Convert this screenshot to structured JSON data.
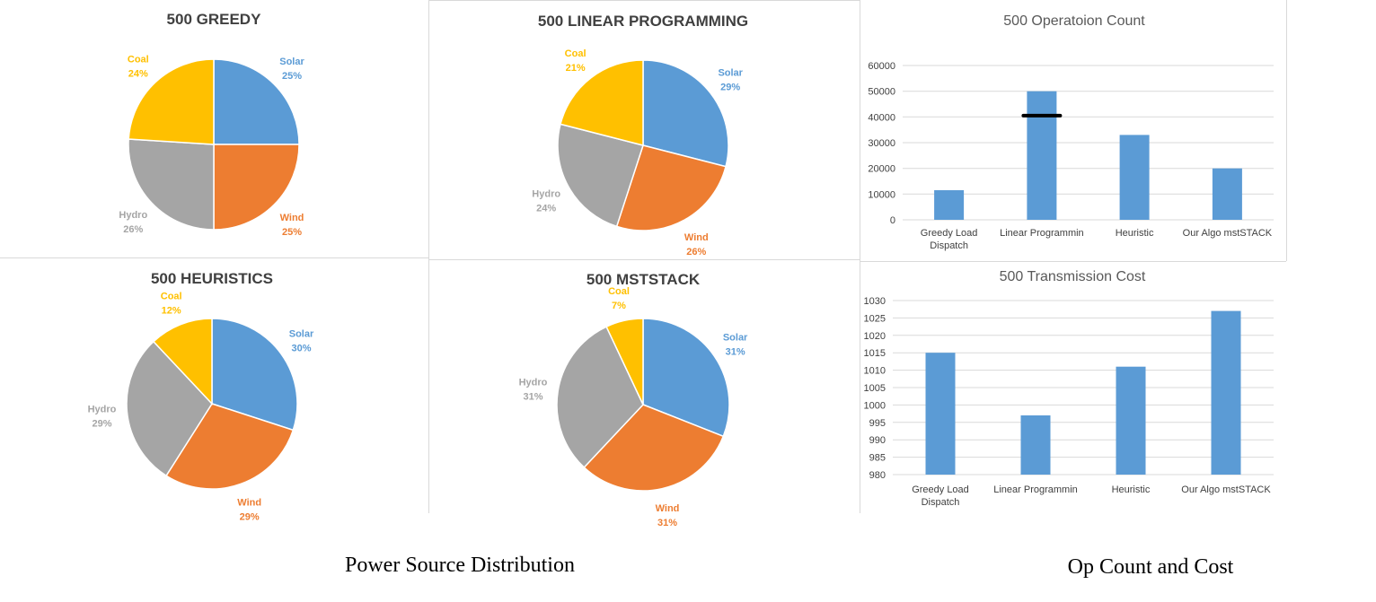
{
  "colors": {
    "Solar": "#5b9bd5",
    "Wind": "#ed7d31",
    "Hydro": "#a5a5a5",
    "Coal": "#ffc000",
    "bar": "#5b9bd5"
  },
  "captions": {
    "left": "Power Source Distribution",
    "right": "Op Count and Cost"
  },
  "chart_data": [
    {
      "type": "pie",
      "title": "500 GREEDY",
      "slices": [
        {
          "label": "Solar",
          "value": 25,
          "pct": "25%"
        },
        {
          "label": "Wind",
          "value": 25,
          "pct": "25%"
        },
        {
          "label": "Hydro",
          "value": 26,
          "pct": "26%"
        },
        {
          "label": "Coal",
          "value": 24,
          "pct": "24%"
        }
      ]
    },
    {
      "type": "pie",
      "title": "500 LINEAR PROGRAMMING",
      "slices": [
        {
          "label": "Solar",
          "value": 29,
          "pct": "29%"
        },
        {
          "label": "Wind",
          "value": 26,
          "pct": "26%"
        },
        {
          "label": "Hydro",
          "value": 24,
          "pct": "24%"
        },
        {
          "label": "Coal",
          "value": 21,
          "pct": "21%"
        }
      ]
    },
    {
      "type": "pie",
      "title": "500 HEURISTICS",
      "slices": [
        {
          "label": "Solar",
          "value": 30,
          "pct": "30%"
        },
        {
          "label": "Wind",
          "value": 29,
          "pct": "29%"
        },
        {
          "label": "Hydro",
          "value": 29,
          "pct": "29%"
        },
        {
          "label": "Coal",
          "value": 12,
          "pct": "12%"
        }
      ]
    },
    {
      "type": "pie",
      "title": "500 MSTSTACK",
      "slices": [
        {
          "label": "Solar",
          "value": 31,
          "pct": "31%"
        },
        {
          "label": "Wind",
          "value": 31,
          "pct": "31%"
        },
        {
          "label": "Hydro",
          "value": 31,
          "pct": "31%"
        },
        {
          "label": "Coal",
          "value": 7,
          "pct": "7%"
        }
      ]
    },
    {
      "type": "bar",
      "title": "500 Operatoion Count",
      "categories": [
        "Greedy Load Dispatch",
        "Linear Programmin",
        "Heuristic",
        "Our Algo mstSTACK"
      ],
      "values": [
        11500,
        50000,
        33000,
        20000
      ],
      "yticks": [
        0,
        10000,
        20000,
        30000,
        40000,
        50000,
        60000
      ],
      "ylim": [
        0,
        60000
      ],
      "grid": true,
      "annotation": {
        "category": "Linear Programmin",
        "value": 40500,
        "description": "black horizontal marker line"
      }
    },
    {
      "type": "bar",
      "title": "500 Transmission Cost",
      "categories": [
        "Greedy Load Dispatch",
        "Linear Programmin",
        "Heuristic",
        "Our Algo mstSTACK"
      ],
      "values": [
        1015,
        997,
        1011,
        1027
      ],
      "yticks": [
        980,
        985,
        990,
        995,
        1000,
        1005,
        1010,
        1015,
        1020,
        1025,
        1030
      ],
      "ylim": [
        980,
        1030
      ],
      "grid": true
    }
  ]
}
